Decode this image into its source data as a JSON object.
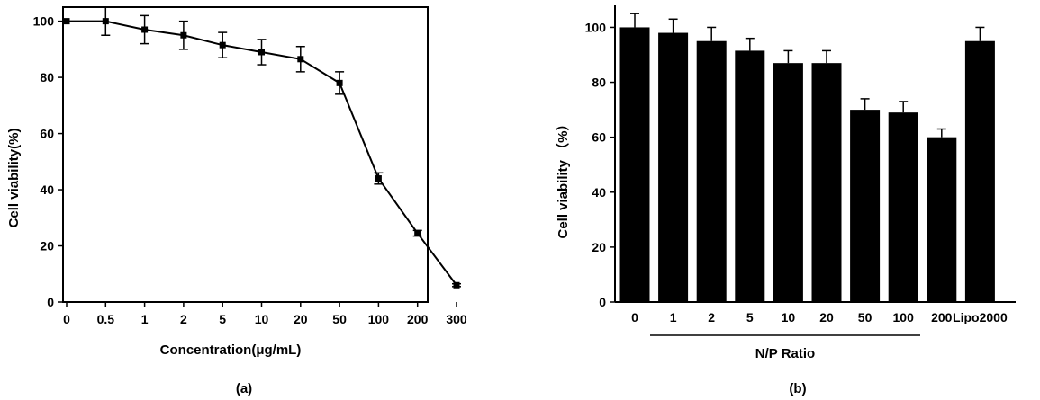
{
  "chart_data": [
    {
      "type": "line",
      "panel_label": "(a)",
      "xlabel": "Concentration(μg/mL)",
      "ylabel": "Cell viability(%)",
      "categories": [
        "0",
        "0.5",
        "1",
        "2",
        "5",
        "10",
        "20",
        "50",
        "100",
        "200",
        "300"
      ],
      "values": [
        100,
        100,
        97,
        95,
        91.5,
        89,
        86.5,
        78,
        44,
        24.5,
        6
      ],
      "errors": [
        0,
        5,
        5,
        5,
        4.5,
        4.5,
        4.5,
        4,
        2,
        1,
        0.5
      ],
      "ylim": [
        0,
        105
      ],
      "yticks": [
        0,
        20,
        40,
        60,
        80,
        100
      ],
      "grid": false,
      "color": "#000000"
    },
    {
      "type": "bar",
      "panel_label": "(b)",
      "xlabel": "N/P Ratio",
      "ylabel": "Cell viability （%）",
      "categories": [
        "0",
        "1",
        "2",
        "5",
        "10",
        "20",
        "50",
        "100",
        "200",
        "Lipo2000"
      ],
      "values": [
        100,
        98,
        95,
        91.5,
        87,
        87,
        70,
        69,
        60,
        95
      ],
      "errors": [
        5,
        5,
        5,
        4.5,
        4.5,
        4.5,
        4,
        4,
        3,
        5
      ],
      "ylim": [
        0,
        108
      ],
      "yticks": [
        0,
        20,
        40,
        60,
        80,
        100
      ],
      "grid": false,
      "color": "#000000"
    }
  ]
}
